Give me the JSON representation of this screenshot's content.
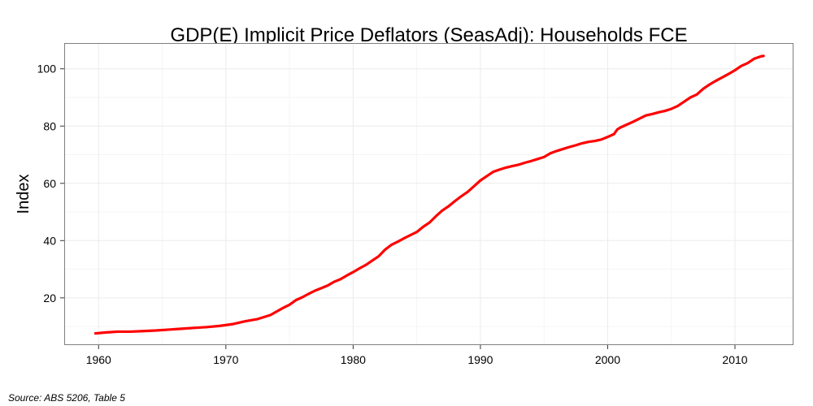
{
  "chart_data": {
    "type": "line",
    "title": "GDP(E) Implicit Price Deflators (SeasAdj): Households FCE",
    "xlabel": "",
    "ylabel": "Index",
    "xlim": [
      1957.3,
      2014.6
    ],
    "ylim": [
      3.5,
      109
    ],
    "x_ticks": [
      1960,
      1970,
      1980,
      1990,
      2000,
      2010
    ],
    "x_tick_labels": [
      "1960",
      "1970",
      "1980",
      "1990",
      "2000",
      "2010"
    ],
    "y_ticks": [
      20,
      40,
      60,
      80,
      100
    ],
    "y_tick_labels": [
      "20",
      "40",
      "60",
      "80",
      "100"
    ],
    "grid": true,
    "legend": "none",
    "series": [
      {
        "color": "#ff0000",
        "x": [
          1959.75,
          1960.5,
          1961.5,
          1962.5,
          1963.5,
          1964.5,
          1965.5,
          1966.5,
          1967.5,
          1968.5,
          1969.5,
          1970.5,
          1971.5,
          1972.5,
          1973.5,
          1974.5,
          1975.0,
          1975.5,
          1976.0,
          1976.5,
          1977.0,
          1977.5,
          1978.0,
          1978.5,
          1979.0,
          1979.5,
          1980.0,
          1980.5,
          1981.0,
          1981.5,
          1982.0,
          1982.5,
          1983.0,
          1983.5,
          1984.0,
          1984.5,
          1985.0,
          1985.5,
          1986.0,
          1986.5,
          1987.0,
          1987.5,
          1988.0,
          1988.5,
          1989.0,
          1989.5,
          1990.0,
          1990.5,
          1991.0,
          1991.5,
          1992.0,
          1992.5,
          1993.0,
          1993.5,
          1994.0,
          1994.5,
          1995.0,
          1995.5,
          1996.0,
          1996.5,
          1997.0,
          1997.5,
          1998.0,
          1998.5,
          1999.0,
          1999.5,
          2000.0,
          2000.5,
          2000.75,
          2001.0,
          2001.5,
          2002.0,
          2002.5,
          2003.0,
          2003.5,
          2004.0,
          2004.5,
          2005.0,
          2005.5,
          2006.0,
          2006.5,
          2007.0,
          2007.5,
          2008.0,
          2008.5,
          2009.0,
          2009.5,
          2010.0,
          2010.5,
          2011.0,
          2011.5,
          2012.0,
          2012.25
        ],
        "values": [
          7.6,
          7.9,
          8.2,
          8.2,
          8.4,
          8.6,
          8.9,
          9.2,
          9.5,
          9.8,
          10.2,
          10.8,
          11.8,
          12.6,
          14.0,
          16.5,
          17.6,
          19.2,
          20.2,
          21.4,
          22.5,
          23.4,
          24.3,
          25.6,
          26.5,
          27.8,
          29.0,
          30.3,
          31.5,
          33.0,
          34.5,
          36.8,
          38.5,
          39.6,
          40.8,
          41.9,
          43.0,
          44.8,
          46.3,
          48.5,
          50.5,
          52.0,
          53.8,
          55.5,
          57.0,
          59.0,
          61.0,
          62.5,
          64.0,
          64.8,
          65.5,
          66.0,
          66.5,
          67.2,
          67.8,
          68.5,
          69.2,
          70.5,
          71.3,
          72.0,
          72.7,
          73.3,
          74.0,
          74.5,
          74.8,
          75.3,
          76.2,
          77.2,
          78.8,
          79.5,
          80.5,
          81.5,
          82.6,
          83.7,
          84.2,
          84.8,
          85.3,
          86.0,
          87.0,
          88.5,
          90.0,
          91.0,
          93.0,
          94.5,
          95.8,
          97.0,
          98.2,
          99.5,
          101.0,
          102.0,
          103.5,
          104.3,
          104.5
        ]
      }
    ]
  },
  "caption": "Source: ABS 5206, Table 5"
}
